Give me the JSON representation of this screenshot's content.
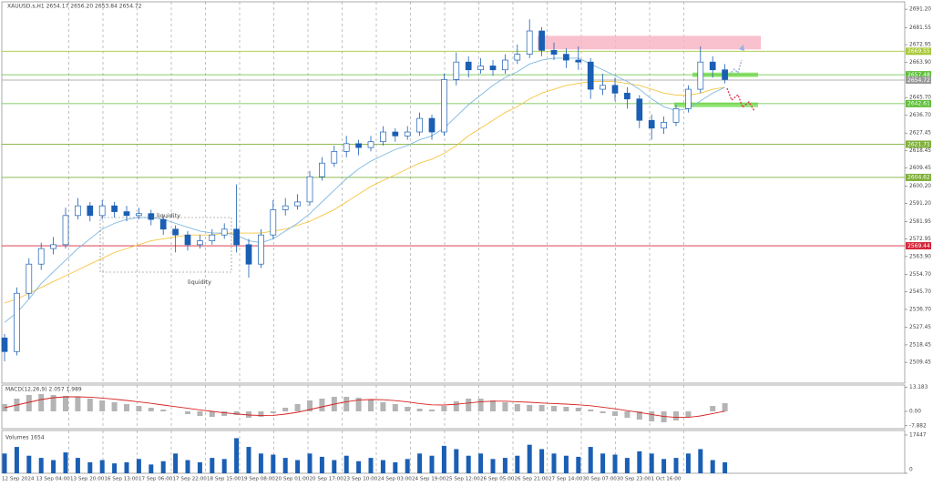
{
  "header": "XAUUSD.s,H1  2654.17 2656.20 2653.84 2654.72",
  "chart_data": [
    {
      "type": "candlestick",
      "open": [
        2522,
        2515,
        2545,
        2560,
        2568,
        2570,
        2585,
        2590,
        2585,
        2590,
        2587,
        2585,
        2586,
        2583,
        2578,
        2575,
        2570,
        2572,
        2575,
        2578,
        2570,
        2560,
        2575,
        2588,
        2590,
        2592,
        2605,
        2612,
        2618,
        2622,
        2620,
        2623,
        2628,
        2626,
        2628,
        2635,
        2628,
        2655,
        2664,
        2660,
        2662,
        2660,
        2665,
        2668,
        2680,
        2670,
        2668,
        2665,
        2664,
        2650,
        2652,
        2648,
        2645,
        2634,
        2630,
        2633,
        2640,
        2650,
        2664,
        2660
      ],
      "high": [
        2524,
        2548,
        2563,
        2571,
        2574,
        2589,
        2594,
        2592,
        2593,
        2592,
        2590,
        2589,
        2588,
        2585,
        2580,
        2577,
        2575,
        2578,
        2581,
        2601,
        2573,
        2578,
        2593,
        2594,
        2596,
        2608,
        2615,
        2621,
        2626,
        2624,
        2626,
        2631,
        2630,
        2631,
        2638,
        2637,
        2658,
        2669,
        2667,
        2666,
        2665,
        2668,
        2673,
        2686,
        2682,
        2674,
        2671,
        2672,
        2666,
        2658,
        2656,
        2651,
        2647,
        2637,
        2636,
        2642,
        2652,
        2672,
        2667,
        2663
      ],
      "low": [
        2510,
        2513,
        2542,
        2557,
        2565,
        2568,
        2583,
        2582,
        2583,
        2584,
        2582,
        2583,
        2580,
        2575,
        2566,
        2567,
        2568,
        2570,
        2573,
        2566,
        2553,
        2558,
        2573,
        2585,
        2588,
        2590,
        2603,
        2610,
        2615,
        2616,
        2618,
        2621,
        2623,
        2624,
        2626,
        2624,
        2626,
        2652,
        2656,
        2658,
        2657,
        2658,
        2663,
        2666,
        2667,
        2665,
        2661,
        2660,
        2645,
        2647,
        2644,
        2640,
        2630,
        2624,
        2627,
        2631,
        2638,
        2648,
        2656,
        2653
      ],
      "close": [
        2515,
        2545,
        2560,
        2568,
        2570,
        2585,
        2590,
        2585,
        2590,
        2587,
        2585,
        2586,
        2583,
        2578,
        2575,
        2570,
        2572,
        2575,
        2578,
        2570,
        2560,
        2575,
        2588,
        2590,
        2592,
        2605,
        2612,
        2618,
        2622,
        2620,
        2623,
        2628,
        2626,
        2628,
        2635,
        2628,
        2655,
        2664,
        2660,
        2662,
        2660,
        2665,
        2668,
        2680,
        2670,
        2668,
        2665,
        2664,
        2650,
        2652,
        2648,
        2645,
        2634,
        2630,
        2633,
        2640,
        2650,
        2664,
        2660,
        2655
      ],
      "color": "#1a5fb4",
      "ma_fast": {
        "color": "#7fb8e0",
        "values": [
          2530,
          2535,
          2542,
          2550,
          2556,
          2562,
          2568,
          2573,
          2578,
          2581,
          2583,
          2584,
          2584,
          2583,
          2581,
          2579,
          2577,
          2576,
          2576,
          2575,
          2572,
          2571,
          2573,
          2577,
          2581,
          2586,
          2592,
          2598,
          2604,
          2609,
          2613,
          2616,
          2619,
          2621,
          2624,
          2626,
          2630,
          2636,
          2642,
          2647,
          2652,
          2656,
          2659,
          2663,
          2665,
          2666,
          2666,
          2666,
          2663,
          2660,
          2657,
          2654,
          2650,
          2645,
          2641,
          2639,
          2640,
          2644,
          2648,
          2651
        ]
      },
      "ma_slow": {
        "color": "#f5c542",
        "values": [
          2540,
          2542,
          2545,
          2548,
          2551,
          2554,
          2557,
          2560,
          2563,
          2566,
          2568,
          2570,
          2572,
          2573,
          2574,
          2575,
          2575,
          2575,
          2576,
          2576,
          2576,
          2576,
          2577,
          2578,
          2580,
          2582,
          2585,
          2588,
          2592,
          2596,
          2600,
          2603,
          2606,
          2609,
          2612,
          2614,
          2617,
          2621,
          2626,
          2630,
          2634,
          2638,
          2641,
          2645,
          2648,
          2650,
          2652,
          2653,
          2654,
          2654,
          2654,
          2653,
          2652,
          2650,
          2648,
          2647,
          2647,
          2648,
          2650,
          2651
        ]
      },
      "ylim": [
        2499.2,
        2695.0
      ],
      "yticks": [
        {
          "value": 2691.2,
          "label": "2691.20"
        },
        2681.55,
        2672.95,
        {
          "value": 2663.9,
          "label": "2663.90"
        },
        {
          "value": 2645.7,
          "label": "2645.70"
        },
        {
          "value": 2636.7,
          "label": "2636.70"
        },
        2627.45,
        2618.45,
        2609.45,
        {
          "value": 2600.2,
          "label": "2600.20"
        },
        {
          "value": 2591.2,
          "label": "2591.20"
        },
        2581.95,
        2572.95,
        {
          "value": 2563.9,
          "label": "2563.90"
        },
        {
          "value": 2554.7,
          "label": "2554.70"
        },
        {
          "value": 2545.7,
          "label": "2545.70"
        },
        {
          "value": 2536.7,
          "label": "2536.70"
        },
        2527.45,
        2518.45,
        2509.45
      ],
      "price_lines": [
        {
          "value": 2669.55,
          "color": "#a8c93a"
        },
        {
          "value": 2657.48,
          "color": "#5fbf3a"
        },
        {
          "value": 2654.72,
          "color": "#9a9a9a"
        },
        {
          "value": 2642.61,
          "color": "#5fbf3a"
        },
        {
          "value": 2621.71,
          "color": "#7fb03a"
        },
        {
          "value": 2604.62,
          "color": "#7fb03a"
        },
        {
          "value": 2569.44,
          "color": "#d6263a"
        }
      ],
      "zones": [
        {
          "low": 2670.5,
          "high": 2677.5,
          "color": "#f7b6c4"
        },
        {
          "low": 2656.3,
          "high": 2658.6,
          "color": "#7ee05a"
        },
        {
          "low": 2640.8,
          "high": 2643.2,
          "color": "#7ee05a"
        }
      ],
      "annotations": [
        "liquidity",
        "liquidity"
      ],
      "x_labels": [
        "12 Sep 2024",
        "13 Sep 04:00",
        "13 Sep 20:00",
        "16 Sep 13:00",
        "17 Sep 06:00",
        "17 Sep 22:00",
        "18 Sep 15:00",
        "19 Sep 08:00",
        "20 Sep 01:00",
        "20 Sep 17:00",
        "23 Sep 10:00",
        "24 Sep 03:00",
        "24 Sep 19:00",
        "25 Sep 12:00",
        "26 Sep 05:00",
        "26 Sep 21:00",
        "27 Sep 14:00",
        "30 Sep 07:00",
        "30 Sep 23:00",
        "1 Oct 16:00"
      ]
    },
    {
      "type": "macd",
      "title": "MACD(12,26,9) 2.057 1.989",
      "values": [
        4,
        7,
        9,
        9.5,
        9,
        8.5,
        8,
        7,
        6,
        5,
        4,
        3,
        2,
        1,
        0,
        -1.5,
        -2.5,
        -3,
        -2.5,
        -2,
        -3.5,
        -3,
        -1,
        2,
        4,
        6,
        7,
        8,
        8,
        7.5,
        6.5,
        5,
        4,
        2.5,
        1.5,
        1,
        3,
        5.5,
        7,
        7,
        6,
        5,
        4,
        3.5,
        3.5,
        3,
        2.5,
        2,
        1,
        -1,
        -2.5,
        -3.5,
        -4.5,
        -5.5,
        -6,
        -5,
        -3,
        0,
        3,
        4.5
      ],
      "color": "#b4b4b4",
      "signal": {
        "color": "#d62020",
        "values": [
          2,
          3.5,
          5,
          6.5,
          7.5,
          8,
          8,
          7.8,
          7.3,
          6.7,
          6,
          5.2,
          4.4,
          3.5,
          2.6,
          1.7,
          0.8,
          0,
          -0.8,
          -1.4,
          -2,
          -2.3,
          -2.2,
          -1.5,
          -0.5,
          1,
          2.5,
          4,
          5.3,
          6.2,
          6.5,
          6.4,
          5.9,
          5.2,
          4.3,
          3.6,
          3.5,
          3.9,
          4.6,
          5.3,
          5.6,
          5.6,
          5.3,
          5,
          4.6,
          4.3,
          4,
          3.6,
          3.1,
          2.3,
          1.4,
          0.4,
          -0.6,
          -1.7,
          -2.8,
          -3.3,
          -3.3,
          -2.5,
          -1.2,
          0.1
        ]
      },
      "ylim": [
        -9.5,
        14.5
      ],
      "yticks": [
        13.183,
        {
          "value": 0,
          "label": "0.00"
        },
        -7.882
      ]
    },
    {
      "type": "volume",
      "title": "Volumes 1654",
      "values": [
        9000,
        12000,
        8000,
        7000,
        6000,
        9500,
        7000,
        5000,
        6000,
        4500,
        5000,
        6500,
        4000,
        5500,
        9000,
        6000,
        5000,
        7000,
        6500,
        16000,
        12000,
        9000,
        8500,
        7000,
        6000,
        9000,
        7500,
        6000,
        8000,
        5500,
        7000,
        6000,
        5000,
        6500,
        9000,
        8000,
        12500,
        11000,
        8000,
        9000,
        6500,
        7000,
        8000,
        13000,
        11000,
        9000,
        8000,
        7500,
        12000,
        9000,
        8500,
        7000,
        10000,
        9000,
        6500,
        7000,
        9000,
        11000,
        6000,
        5000
      ],
      "color": "#1a5fb4",
      "ylim": [
        0,
        19500
      ],
      "yticks": [
        17447,
        0
      ]
    }
  ]
}
